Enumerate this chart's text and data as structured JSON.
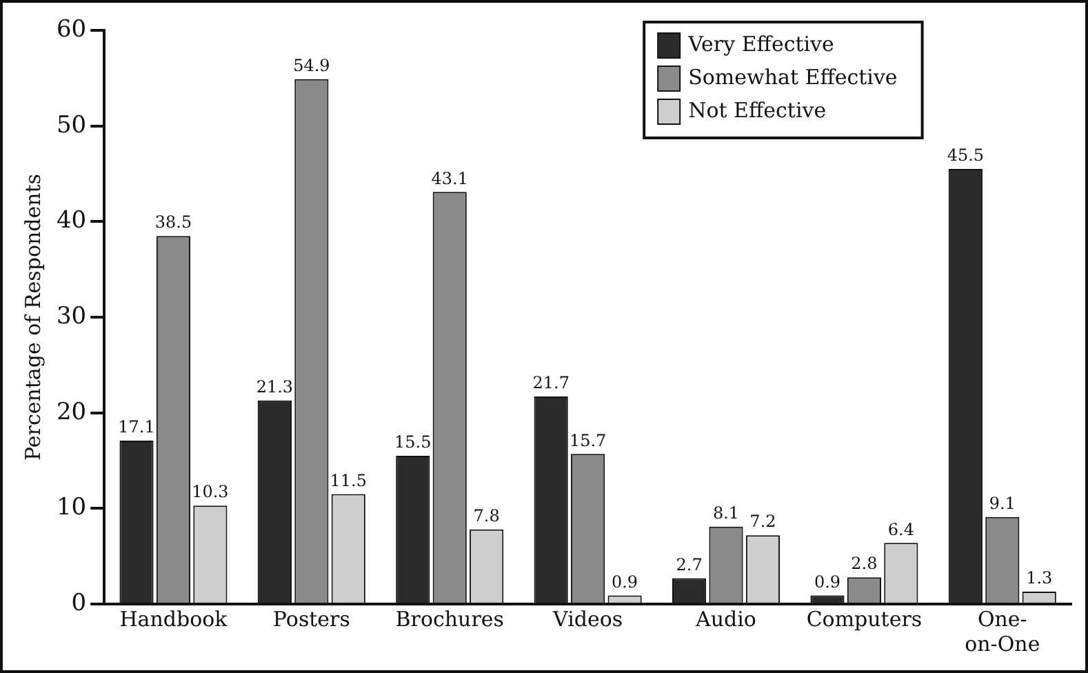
{
  "chart_data": {
    "type": "bar",
    "ylabel": "Percentage of Respondents",
    "categories": [
      "Handbook",
      "Posters",
      "Brochures",
      "Videos",
      "Audio",
      "Computers",
      "One-\non-One"
    ],
    "series": [
      {
        "name": "Very Effective",
        "color": "#2b2b2b",
        "values": [
          17.1,
          21.3,
          15.5,
          21.7,
          2.7,
          0.9,
          45.5
        ]
      },
      {
        "name": "Somewhat Effective",
        "color": "#8a8a8a",
        "values": [
          38.5,
          54.9,
          43.1,
          15.7,
          8.1,
          2.8,
          9.1
        ]
      },
      {
        "name": "Not Effective",
        "color": "#cfcfcf",
        "values": [
          10.3,
          11.5,
          7.8,
          0.9,
          7.2,
          6.4,
          1.3
        ]
      }
    ],
    "ylim": [
      0,
      60
    ],
    "yticks": [
      0,
      10,
      20,
      30,
      40,
      50,
      60
    ],
    "grid": false,
    "legend": "top right",
    "data_labels": true
  }
}
